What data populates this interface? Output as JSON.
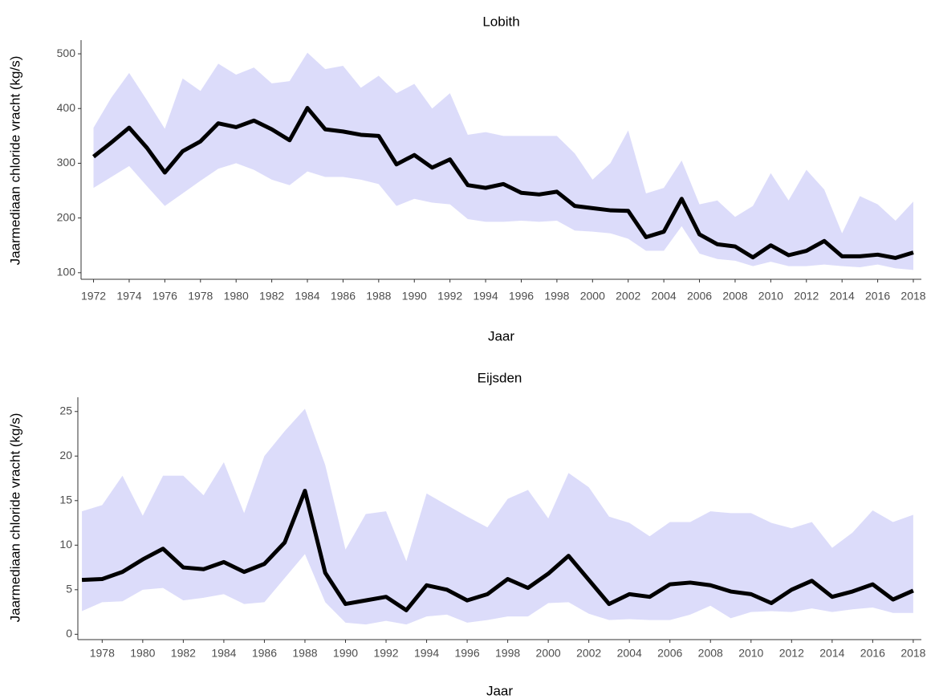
{
  "chart_data": [
    {
      "type": "line",
      "title": "Lobith",
      "x_label": "Jaar",
      "y_label": "Jaarmediaan chloride vracht (kg/s)",
      "x": [
        1972,
        1973,
        1974,
        1975,
        1976,
        1977,
        1978,
        1979,
        1980,
        1981,
        1982,
        1983,
        1984,
        1985,
        1986,
        1987,
        1988,
        1989,
        1990,
        1991,
        1992,
        1993,
        1994,
        1995,
        1996,
        1997,
        1998,
        1999,
        2000,
        2001,
        2002,
        2003,
        2004,
        2005,
        2006,
        2007,
        2008,
        2009,
        2010,
        2011,
        2012,
        2013,
        2014,
        2015,
        2016,
        2017,
        2018
      ],
      "values": [
        312,
        338,
        365,
        328,
        283,
        322,
        340,
        373,
        366,
        378,
        362,
        342,
        401,
        362,
        358,
        352,
        350,
        298,
        315,
        292,
        307,
        260,
        255,
        262,
        246,
        243,
        248,
        222,
        218,
        214,
        213,
        165,
        175,
        235,
        170,
        152,
        148,
        128,
        150,
        132,
        140,
        158,
        130,
        130,
        133,
        127,
        137
      ],
      "upper": [
        365,
        420,
        465,
        415,
        363,
        455,
        432,
        482,
        462,
        475,
        446,
        450,
        502,
        472,
        478,
        438,
        460,
        428,
        445,
        400,
        428,
        352,
        357,
        350,
        350,
        350,
        350,
        318,
        270,
        300,
        360,
        245,
        255,
        305,
        225,
        232,
        202,
        222,
        282,
        232,
        288,
        252,
        172,
        240,
        225,
        195,
        230
      ],
      "lower": [
        255,
        275,
        295,
        258,
        222,
        245,
        268,
        290,
        300,
        288,
        270,
        260,
        285,
        275,
        275,
        270,
        262,
        222,
        235,
        228,
        225,
        198,
        193,
        193,
        195,
        193,
        195,
        177,
        175,
        172,
        162,
        140,
        140,
        185,
        135,
        125,
        122,
        112,
        120,
        112,
        112,
        115,
        112,
        110,
        115,
        108,
        105
      ],
      "color": "#000000",
      "band_color": "#dcdcfa",
      "xlim": [
        1971.3,
        2018.45
      ],
      "xticks": [
        1972,
        1974,
        1976,
        1978,
        1980,
        1982,
        1984,
        1986,
        1988,
        1990,
        1992,
        1994,
        1996,
        1998,
        2000,
        2002,
        2004,
        2006,
        2008,
        2010,
        2012,
        2014,
        2016,
        2018
      ],
      "ylim": [
        88,
        525
      ],
      "yticks": [
        100,
        200,
        300,
        400,
        500
      ]
    },
    {
      "type": "line",
      "title": "Eijsden",
      "x_label": "Jaar",
      "y_label": "Jaarmediaan chloride vracht (kg/s)",
      "x": [
        1977,
        1978,
        1979,
        1980,
        1981,
        1982,
        1983,
        1984,
        1985,
        1986,
        1987,
        1988,
        1989,
        1990,
        1991,
        1992,
        1993,
        1994,
        1995,
        1996,
        1997,
        1998,
        1999,
        2000,
        2001,
        2002,
        2003,
        2004,
        2005,
        2006,
        2007,
        2008,
        2009,
        2010,
        2011,
        2012,
        2013,
        2014,
        2015,
        2016,
        2017,
        2018
      ],
      "values": [
        6.1,
        6.2,
        7.0,
        8.4,
        9.6,
        7.5,
        7.3,
        8.1,
        7.0,
        7.9,
        10.3,
        16.1,
        6.9,
        3.4,
        3.8,
        4.2,
        2.7,
        5.5,
        5.0,
        3.8,
        4.5,
        6.2,
        5.2,
        6.8,
        8.8,
        6.1,
        3.4,
        4.5,
        4.2,
        5.6,
        5.8,
        5.5,
        4.8,
        4.5,
        3.5,
        5.0,
        6.0,
        4.2,
        4.8,
        5.6,
        3.9,
        4.9
      ],
      "upper": [
        13.8,
        14.5,
        17.8,
        13.3,
        17.8,
        17.8,
        15.6,
        19.3,
        13.6,
        20.0,
        22.8,
        25.3,
        19.0,
        9.5,
        13.5,
        13.8,
        8.2,
        15.8,
        14.5,
        13.2,
        12.0,
        15.2,
        16.2,
        13.0,
        18.1,
        16.5,
        13.2,
        12.5,
        11.0,
        12.6,
        12.6,
        13.8,
        13.6,
        13.6,
        12.5,
        11.9,
        12.6,
        9.7,
        11.4,
        13.9,
        12.6,
        13.4
      ],
      "lower": [
        2.6,
        3.6,
        3.7,
        5.0,
        5.2,
        3.8,
        4.1,
        4.5,
        3.4,
        3.6,
        6.3,
        9.0,
        3.6,
        1.3,
        1.1,
        1.5,
        1.1,
        2.0,
        2.2,
        1.3,
        1.6,
        2.0,
        2.0,
        3.5,
        3.6,
        2.3,
        1.6,
        1.7,
        1.6,
        1.6,
        2.2,
        3.2,
        1.8,
        2.5,
        2.6,
        2.5,
        2.9,
        2.5,
        2.8,
        3.0,
        2.4,
        2.4
      ],
      "color": "#000000",
      "band_color": "#dcdcfa",
      "xlim": [
        1976.8,
        2018.4
      ],
      "xticks": [
        1978,
        1980,
        1982,
        1984,
        1986,
        1988,
        1990,
        1992,
        1994,
        1996,
        1998,
        2000,
        2002,
        2004,
        2006,
        2008,
        2010,
        2012,
        2014,
        2016,
        2018
      ],
      "ylim": [
        -0.6,
        26.6
      ],
      "yticks": [
        0,
        5,
        10,
        15,
        20,
        25
      ]
    }
  ]
}
